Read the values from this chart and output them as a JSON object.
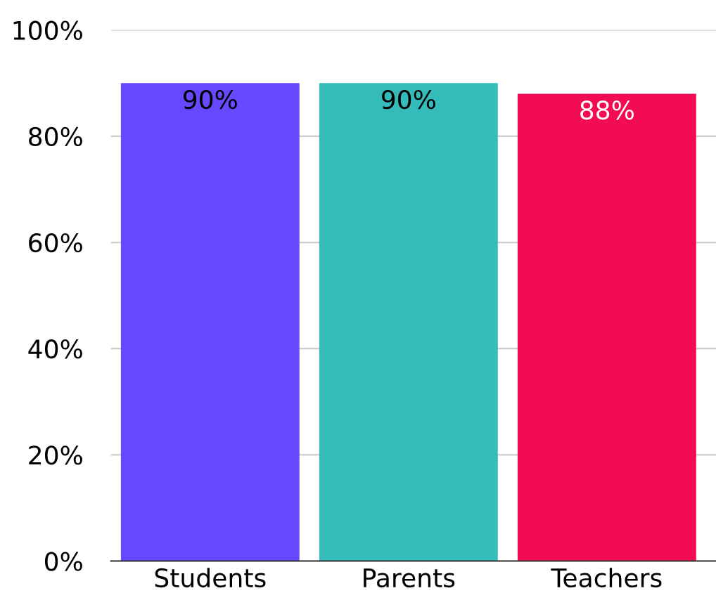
{
  "chart_data": {
    "type": "bar",
    "categories": [
      "Students",
      "Parents",
      "Teachers"
    ],
    "values": [
      90,
      90,
      88
    ],
    "colors": [
      "#6648ff",
      "#36bbbb",
      "#f20c53"
    ],
    "value_labels": [
      "90%",
      "90%",
      "88%"
    ],
    "ylim": [
      0,
      100
    ],
    "yticks": [
      {
        "value": 0,
        "label": "0%"
      },
      {
        "value": 20,
        "label": "20%"
      },
      {
        "value": 40,
        "label": "40%"
      },
      {
        "value": 60,
        "label": "60%"
      },
      {
        "value": 80,
        "label": "80%"
      },
      {
        "value": 100,
        "label": "100%"
      }
    ],
    "grid": "y"
  }
}
